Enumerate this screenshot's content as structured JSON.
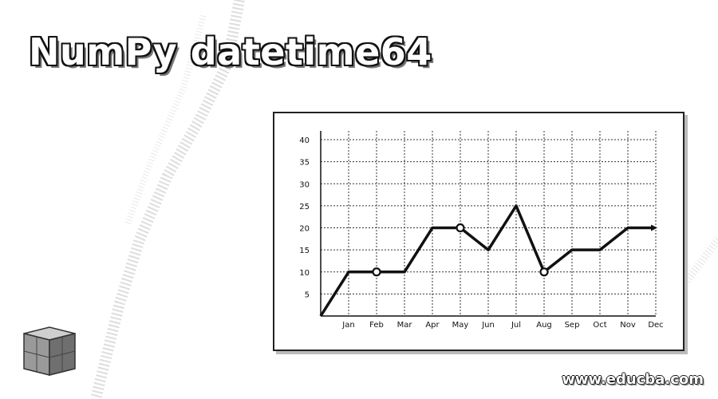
{
  "title": "NumPy datetime64",
  "watermark": "www.educba.com",
  "logo_icon": "educba-cube-logo-icon",
  "colors": {
    "line": "#111111",
    "grid": "#333333",
    "marker_fill": "#ffffff"
  },
  "chart_data": {
    "type": "line",
    "title": "",
    "xlabel": "",
    "ylabel": "",
    "categories": [
      "Jan",
      "Feb",
      "Mar",
      "Apr",
      "May",
      "Jun",
      "Jul",
      "Aug",
      "Sep",
      "Oct",
      "Nov",
      "Dec"
    ],
    "series": [
      {
        "values": [
          0,
          10,
          10,
          10,
          20,
          20,
          15,
          25,
          10,
          15,
          15,
          20
        ]
      }
    ],
    "markers": [
      "Feb",
      "May",
      "Aug",
      "Dec"
    ],
    "yticks": [
      5,
      10,
      15,
      20,
      25,
      30,
      35,
      40
    ],
    "ylim": [
      0,
      42
    ],
    "grid": true,
    "legend": "none"
  }
}
